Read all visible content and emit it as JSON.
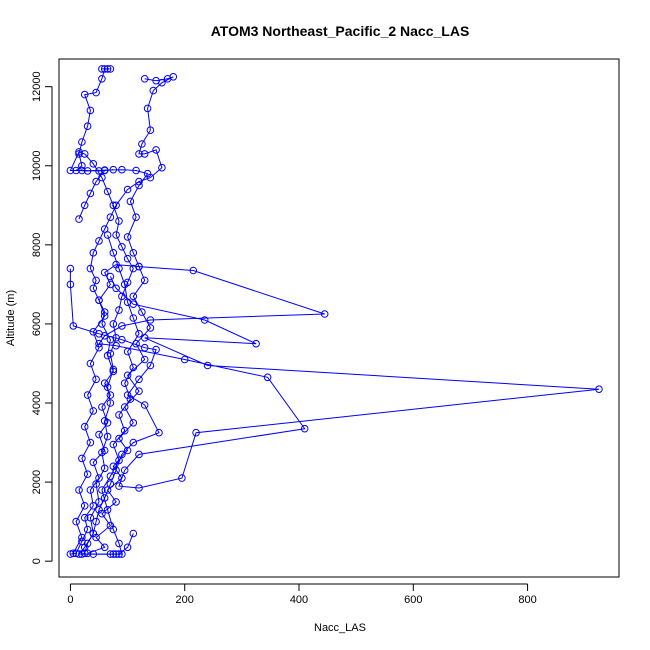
{
  "chart_data": {
    "type": "line",
    "title": "ATOM3 Northeast_Pacific_2 Nacc_LAS",
    "xlabel": "Nacc_LAS",
    "ylabel": "Altitude (m)",
    "xlim": [
      -20,
      960
    ],
    "ylim": [
      -400,
      12700
    ],
    "xticks": [
      0,
      200,
      400,
      600,
      800
    ],
    "yticks": [
      0,
      2000,
      4000,
      6000,
      8000,
      10000,
      12000
    ],
    "grid": false,
    "legend": "none",
    "marker": "open-circle",
    "color": "#0000ff",
    "series": [
      {
        "values": [
          [
            30,
            200
          ],
          [
            60,
            350
          ],
          [
            45,
            600
          ],
          [
            70,
            900
          ],
          [
            55,
            1200
          ],
          [
            80,
            1500
          ],
          [
            65,
            1800
          ],
          [
            90,
            2100
          ],
          [
            75,
            2400
          ],
          [
            100,
            2800
          ],
          [
            85,
            3100
          ],
          [
            110,
            3500
          ],
          [
            95,
            3900
          ],
          [
            120,
            4300
          ],
          [
            100,
            4700
          ],
          [
            130,
            5100
          ],
          [
            115,
            5500
          ],
          [
            140,
            5900
          ],
          [
            125,
            6300
          ],
          [
            110,
            6700
          ],
          [
            130,
            7100
          ],
          [
            120,
            7450
          ],
          [
            110,
            7800
          ],
          [
            100,
            8200
          ],
          [
            115,
            8700
          ],
          [
            105,
            9100
          ],
          [
            120,
            9500
          ],
          [
            135,
            9800
          ],
          [
            115,
            9880
          ],
          [
            90,
            9900
          ],
          [
            60,
            9890
          ],
          [
            30,
            9870
          ],
          [
            10,
            9880
          ],
          [
            20,
            10000
          ],
          [
            15,
            10300
          ],
          [
            20,
            10600
          ],
          [
            30,
            11000
          ],
          [
            35,
            11400
          ],
          [
            25,
            11800
          ],
          [
            45,
            11850
          ],
          [
            55,
            12200
          ],
          [
            60,
            12450
          ],
          [
            70,
            12450
          ],
          [
            65,
            12450
          ],
          [
            55,
            12450
          ]
        ]
      },
      {
        "values": [
          [
            130,
            12200
          ],
          [
            150,
            12150
          ],
          [
            170,
            12200
          ],
          [
            180,
            12250
          ],
          [
            160,
            12100
          ],
          [
            145,
            11900
          ],
          [
            135,
            11450
          ],
          [
            140,
            10900
          ],
          [
            125,
            10550
          ],
          [
            120,
            10300
          ],
          [
            130,
            10300
          ],
          [
            150,
            10400
          ],
          [
            160,
            9950
          ],
          [
            140,
            9700
          ],
          [
            120,
            9600
          ],
          [
            100,
            9400
          ],
          [
            80,
            9000
          ],
          [
            70,
            8700
          ],
          [
            60,
            8400
          ],
          [
            50,
            8100
          ],
          [
            40,
            7800
          ],
          [
            35,
            7400
          ],
          [
            45,
            7100
          ],
          [
            40,
            6900
          ],
          [
            50,
            6600
          ],
          [
            60,
            6300
          ],
          [
            55,
            6000
          ],
          [
            70,
            5600
          ],
          [
            65,
            5200
          ],
          [
            75,
            4800
          ],
          [
            60,
            4500
          ],
          [
            70,
            4200
          ],
          [
            55,
            3900
          ],
          [
            65,
            3500
          ],
          [
            50,
            3200
          ],
          [
            60,
            2800
          ],
          [
            40,
            2500
          ],
          [
            50,
            2100
          ],
          [
            35,
            1800
          ],
          [
            40,
            1400
          ],
          [
            25,
            1100
          ],
          [
            30,
            800
          ],
          [
            20,
            500
          ],
          [
            10,
            200
          ],
          [
            0,
            180
          ]
        ]
      },
      {
        "values": [
          [
            5,
            200
          ],
          [
            20,
            600
          ],
          [
            10,
            1000
          ],
          [
            25,
            1400
          ],
          [
            15,
            1800
          ],
          [
            30,
            2200
          ],
          [
            20,
            2600
          ],
          [
            35,
            3000
          ],
          [
            25,
            3400
          ],
          [
            40,
            3800
          ],
          [
            30,
            4200
          ],
          [
            45,
            4600
          ],
          [
            35,
            5000
          ],
          [
            50,
            5400
          ],
          [
            40,
            5800
          ],
          [
            60,
            6200
          ],
          [
            50,
            6600
          ],
          [
            70,
            7000
          ],
          [
            60,
            7300
          ],
          [
            80,
            7500
          ],
          [
            120,
            7450
          ],
          [
            215,
            7350
          ],
          [
            445,
            6250
          ],
          [
            140,
            6100
          ],
          [
            90,
            5950
          ],
          [
            60,
            5700
          ],
          [
            50,
            5500
          ],
          [
            80,
            5450
          ],
          [
            200,
            5100
          ],
          [
            345,
            4650
          ],
          [
            410,
            3350
          ],
          [
            120,
            2700
          ],
          [
            95,
            2300
          ],
          [
            85,
            1900
          ],
          [
            120,
            1850
          ],
          [
            195,
            2100
          ],
          [
            220,
            3250
          ],
          [
            925,
            4350
          ],
          [
            240,
            4950
          ],
          [
            130,
            5650
          ],
          [
            325,
            5500
          ],
          [
            235,
            6100
          ],
          [
            110,
            6500
          ],
          [
            80,
            6900
          ],
          [
            70,
            7200
          ]
        ]
      },
      {
        "values": [
          [
            0,
            7400
          ],
          [
            0,
            7000
          ],
          [
            5,
            5950
          ],
          [
            50,
            5750
          ],
          [
            90,
            5600
          ],
          [
            130,
            5400
          ],
          [
            150,
            5350
          ],
          [
            140,
            4950
          ],
          [
            120,
            4600
          ],
          [
            100,
            4200
          ],
          [
            130,
            3950
          ],
          [
            155,
            3250
          ],
          [
            110,
            3000
          ],
          [
            90,
            2700
          ],
          [
            80,
            2300
          ],
          [
            70,
            1950
          ],
          [
            60,
            1600
          ],
          [
            50,
            1300
          ],
          [
            45,
            1000
          ],
          [
            40,
            700
          ],
          [
            30,
            450
          ],
          [
            25,
            200
          ],
          [
            20,
            180
          ],
          [
            80,
            180
          ],
          [
            90,
            180
          ],
          [
            85,
            450
          ],
          [
            75,
            800
          ],
          [
            65,
            1300
          ],
          [
            55,
            1800
          ],
          [
            70,
            2150
          ],
          [
            85,
            2550
          ],
          [
            75,
            2950
          ],
          [
            95,
            3300
          ],
          [
            85,
            3700
          ],
          [
            105,
            4100
          ],
          [
            95,
            4500
          ],
          [
            110,
            4900
          ],
          [
            100,
            5300
          ],
          [
            120,
            5750
          ],
          [
            110,
            6150
          ],
          [
            100,
            6550
          ],
          [
            95,
            7000
          ],
          [
            85,
            7400
          ],
          [
            75,
            7800
          ],
          [
            65,
            8250
          ]
        ]
      },
      {
        "values": [
          [
            15,
            8650
          ],
          [
            25,
            9000
          ],
          [
            35,
            9300
          ],
          [
            45,
            9600
          ],
          [
            60,
            9880
          ],
          [
            75,
            9900
          ],
          [
            50,
            9870
          ],
          [
            20,
            9880
          ],
          [
            0,
            9880
          ],
          [
            15,
            10350
          ],
          [
            25,
            10300
          ],
          [
            40,
            10050
          ],
          [
            55,
            9700
          ],
          [
            65,
            9350
          ],
          [
            75,
            9000
          ],
          [
            85,
            8600
          ],
          [
            80,
            8250
          ],
          [
            90,
            7950
          ],
          [
            100,
            7650
          ],
          [
            110,
            7400
          ],
          [
            100,
            7050
          ],
          [
            90,
            6700
          ],
          [
            85,
            6350
          ],
          [
            75,
            6000
          ],
          [
            80,
            5650
          ],
          [
            70,
            5250
          ],
          [
            75,
            4850
          ],
          [
            65,
            4400
          ],
          [
            70,
            4000
          ],
          [
            60,
            3550
          ],
          [
            65,
            3150
          ],
          [
            55,
            2750
          ],
          [
            60,
            2350
          ],
          [
            45,
            1950
          ],
          [
            50,
            1500
          ],
          [
            35,
            1100
          ],
          [
            40,
            700
          ],
          [
            25,
            350
          ],
          [
            15,
            180
          ],
          [
            40,
            180
          ],
          [
            70,
            180
          ],
          [
            75,
            180
          ],
          [
            85,
            180
          ],
          [
            100,
            350
          ],
          [
            110,
            700
          ]
        ]
      }
    ]
  }
}
